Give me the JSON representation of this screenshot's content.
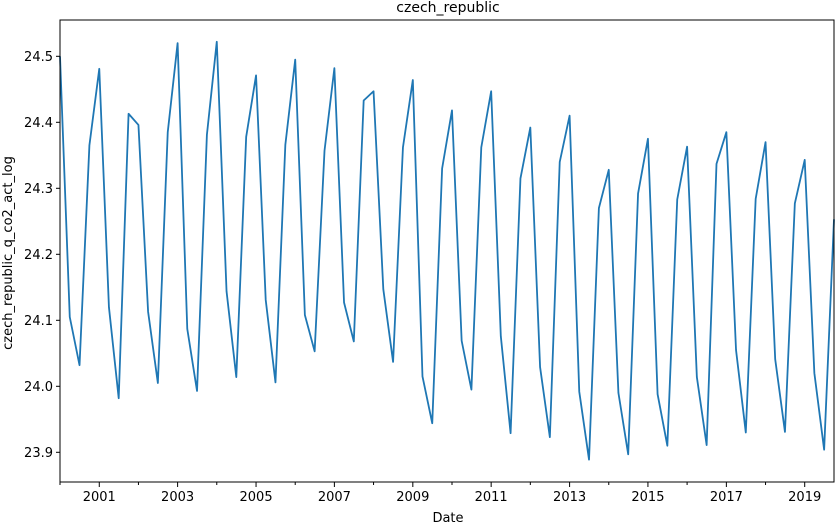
{
  "chart_data": {
    "type": "line",
    "title": "czech_republic",
    "xlabel": "Date",
    "ylabel": "czech_republic_q_co2_act_log",
    "xlim": [
      "2000-01-01",
      "2019-10-01"
    ],
    "ylim": [
      23.855,
      24.555
    ],
    "x_ticks": [
      "2001",
      "2003",
      "2005",
      "2007",
      "2009",
      "2011",
      "2013",
      "2015",
      "2017",
      "2019"
    ],
    "y_ticks": [
      "23.9",
      "24.0",
      "24.1",
      "24.2",
      "24.3",
      "24.4",
      "24.5"
    ],
    "grid": false,
    "legend": "none",
    "line_color": "#1f77b4",
    "series": [
      {
        "x": [
          "2000-01-01",
          "2000-04-01",
          "2000-07-01",
          "2000-10-01",
          "2001-01-01",
          "2001-04-01",
          "2001-07-01",
          "2001-10-01",
          "2002-01-01",
          "2002-04-01",
          "2002-07-01",
          "2002-10-01",
          "2003-01-01",
          "2003-04-01",
          "2003-07-01",
          "2003-10-01",
          "2004-01-01",
          "2004-04-01",
          "2004-07-01",
          "2004-10-01",
          "2005-01-01",
          "2005-04-01",
          "2005-07-01",
          "2005-10-01",
          "2006-01-01",
          "2006-04-01",
          "2006-07-01",
          "2006-10-01",
          "2007-01-01",
          "2007-04-01",
          "2007-07-01",
          "2007-10-01",
          "2008-01-01",
          "2008-04-01",
          "2008-07-01",
          "2008-10-01",
          "2009-01-01",
          "2009-04-01",
          "2009-07-01",
          "2009-10-01",
          "2010-01-01",
          "2010-04-01",
          "2010-07-01",
          "2010-10-01",
          "2011-01-01",
          "2011-04-01",
          "2011-07-01",
          "2011-10-01",
          "2012-01-01",
          "2012-04-01",
          "2012-07-01",
          "2012-10-01",
          "2013-01-01",
          "2013-04-01",
          "2013-07-01",
          "2013-10-01",
          "2014-01-01",
          "2014-04-01",
          "2014-07-01",
          "2014-10-01",
          "2015-01-01",
          "2015-04-01",
          "2015-07-01",
          "2015-10-01",
          "2016-01-01",
          "2016-04-01",
          "2016-07-01",
          "2016-10-01",
          "2017-01-01",
          "2017-04-01",
          "2017-07-01",
          "2017-10-01",
          "2018-01-01",
          "2018-04-01",
          "2018-07-01",
          "2018-10-01",
          "2019-01-01",
          "2019-04-01",
          "2019-07-01",
          "2019-10-01"
        ],
        "y": [
          24.5,
          24.105,
          24.032,
          24.365,
          24.481,
          24.12,
          23.982,
          24.413,
          24.396,
          24.113,
          24.005,
          24.385,
          24.52,
          24.087,
          23.993,
          24.381,
          24.522,
          24.144,
          24.014,
          24.378,
          24.471,
          24.131,
          24.006,
          24.366,
          24.495,
          24.108,
          24.053,
          24.357,
          24.482,
          24.127,
          24.068,
          24.433,
          24.447,
          24.147,
          24.037,
          24.362,
          24.464,
          24.015,
          23.944,
          24.33,
          24.418,
          24.069,
          23.995,
          24.362,
          24.447,
          24.076,
          23.929,
          24.315,
          24.392,
          24.029,
          23.923,
          24.34,
          24.41,
          23.992,
          23.889,
          24.27,
          24.328,
          23.99,
          23.897,
          24.292,
          24.375,
          23.988,
          23.91,
          24.283,
          24.363,
          24.014,
          23.911,
          24.337,
          24.385,
          24.055,
          23.93,
          24.284,
          24.37,
          24.041,
          23.931,
          24.277,
          24.343,
          24.02,
          23.904,
          24.253
        ]
      }
    ]
  }
}
